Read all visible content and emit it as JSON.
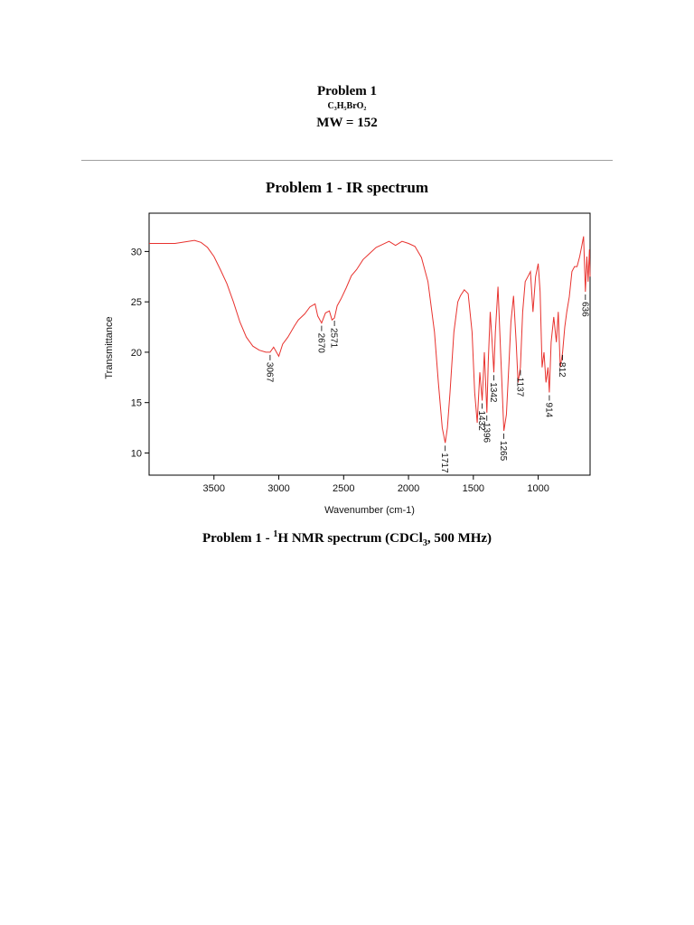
{
  "header": {
    "title": "Problem 1",
    "formula": "C₃H₅BrO₂",
    "mw": "MW = 152"
  },
  "ir_title": "Problem 1 - IR spectrum",
  "nmr_title": {
    "prefix": "Problem 1 - ",
    "sup": "1",
    "mid": "H NMR spectrum (CDCl",
    "sub": "3",
    "suffix": ", 500 MHz)"
  },
  "chart_data": {
    "type": "line",
    "title": "Problem 1 - IR spectrum",
    "xlabel": "Wavenumber (cm-1)",
    "ylabel": "Transmittance",
    "xlim": [
      4000,
      600
    ],
    "ylim": [
      7.8,
      33.8
    ],
    "x_ticks": [
      3500,
      3000,
      2500,
      2000,
      1500,
      1000
    ],
    "y_ticks": [
      10,
      15,
      20,
      25,
      30
    ],
    "grid": false,
    "line_color": "#e8322e",
    "series": [
      {
        "x": [
          4000,
          3800,
          3700,
          3650,
          3600,
          3550,
          3500,
          3450,
          3400,
          3350,
          3300,
          3250,
          3200,
          3150,
          3100,
          3067,
          3040,
          3000,
          2970,
          2930,
          2880,
          2850,
          2800,
          2760,
          2720,
          2700,
          2670,
          2640,
          2610,
          2590,
          2571,
          2550,
          2520,
          2480,
          2440,
          2400,
          2350,
          2300,
          2250,
          2200,
          2150,
          2100,
          2050,
          2000,
          1950,
          1900,
          1850,
          1800,
          1770,
          1740,
          1717,
          1700,
          1680,
          1650,
          1620,
          1600,
          1570,
          1540,
          1510,
          1490,
          1470,
          1450,
          1432,
          1415,
          1396,
          1385,
          1370,
          1355,
          1342,
          1330,
          1310,
          1290,
          1265,
          1245,
          1225,
          1210,
          1190,
          1170,
          1155,
          1137,
          1120,
          1100,
          1080,
          1060,
          1040,
          1020,
          1000,
          985,
          970,
          955,
          940,
          925,
          914,
          900,
          880,
          860,
          845,
          830,
          812,
          795,
          780,
          760,
          740,
          720,
          700,
          680,
          665,
          650,
          636,
          625,
          615,
          605,
          600
        ],
        "y": [
          30.8,
          30.8,
          31.0,
          31.1,
          30.9,
          30.4,
          29.5,
          28.2,
          26.8,
          25.0,
          23.0,
          21.5,
          20.6,
          20.2,
          20.0,
          20.0,
          20.5,
          19.6,
          20.8,
          21.5,
          22.6,
          23.2,
          23.8,
          24.5,
          24.8,
          23.6,
          22.9,
          23.9,
          24.1,
          23.2,
          23.4,
          24.6,
          25.3,
          26.4,
          27.6,
          28.2,
          29.2,
          29.8,
          30.4,
          30.7,
          31.0,
          30.6,
          31.0,
          30.8,
          30.5,
          29.4,
          27.0,
          22.0,
          17.0,
          12.5,
          11.0,
          12.5,
          16.0,
          22.0,
          25.0,
          25.6,
          26.2,
          25.8,
          22.0,
          16.0,
          13.0,
          18.0,
          15.2,
          20.0,
          14.0,
          19.0,
          24.0,
          21.0,
          18.0,
          22.0,
          26.5,
          20.0,
          12.2,
          13.8,
          19.0,
          23.0,
          25.6,
          21.0,
          17.0,
          18.5,
          24.0,
          27.0,
          27.5,
          28.0,
          24.0,
          27.5,
          28.8,
          26.0,
          18.5,
          20.0,
          17.0,
          18.5,
          16.0,
          21.0,
          23.5,
          21.0,
          24.0,
          18.5,
          20.0,
          22.5,
          24.0,
          25.5,
          28.0,
          28.5,
          28.5,
          29.5,
          30.5,
          31.5,
          26.0,
          29.5,
          27.0,
          30.2,
          27.5
        ]
      }
    ],
    "peak_labels": [
      {
        "label": "3067",
        "x": 3067,
        "y": 20.0
      },
      {
        "label": "2670",
        "x": 2670,
        "y": 22.9
      },
      {
        "label": "2571",
        "x": 2571,
        "y": 23.4
      },
      {
        "label": "1717",
        "x": 1717,
        "y": 11.0
      },
      {
        "label": "1432",
        "x": 1432,
        "y": 15.2
      },
      {
        "label": "1396",
        "x": 1396,
        "y": 14.0
      },
      {
        "label": "1342",
        "x": 1342,
        "y": 18.0
      },
      {
        "label": "1265",
        "x": 1265,
        "y": 12.2
      },
      {
        "label": "1137",
        "x": 1137,
        "y": 18.5
      },
      {
        "label": "914",
        "x": 914,
        "y": 16.0
      },
      {
        "label": "812",
        "x": 812,
        "y": 20.0
      },
      {
        "label": "636",
        "x": 636,
        "y": 26.0
      }
    ]
  }
}
